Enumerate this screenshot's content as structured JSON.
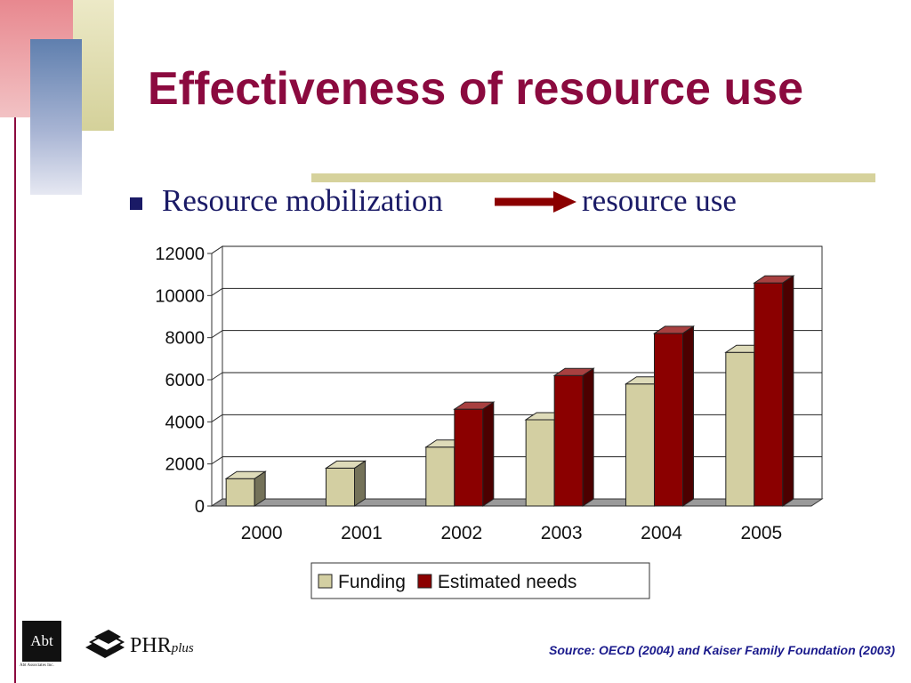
{
  "slide": {
    "title": "Effectiveness of resource use",
    "bullet_left": "Resource mobilization",
    "bullet_right": "resource use",
    "source": "Source: OECD (2004) and Kaiser Family Foundation (2003)"
  },
  "logos": {
    "abt": "Abt",
    "abt_sub": "Abt Associates Inc.",
    "phr": "PHR",
    "phr_plus": "plus"
  },
  "colors": {
    "title": "#8b0a3f",
    "text": "#1a1a66",
    "funding": "#d3cfa2",
    "needs": "#8b0000",
    "accent_rule": "#d6d29c"
  },
  "chart_data": {
    "type": "bar",
    "three_d": true,
    "categories": [
      "2000",
      "2001",
      "2002",
      "2003",
      "2004",
      "2005"
    ],
    "series": [
      {
        "name": "Funding",
        "color": "#d3cfa2",
        "values": [
          1300,
          1800,
          2800,
          4100,
          5800,
          7300
        ]
      },
      {
        "name": "Estimated needs",
        "color": "#8b0000",
        "values": [
          0,
          0,
          4600,
          6200,
          8200,
          10600
        ]
      }
    ],
    "yticks": [
      0,
      2000,
      4000,
      6000,
      8000,
      10000,
      12000
    ],
    "ylim": [
      0,
      12000
    ],
    "grid": true,
    "legend": "bottom",
    "xlabel": "",
    "ylabel": ""
  }
}
